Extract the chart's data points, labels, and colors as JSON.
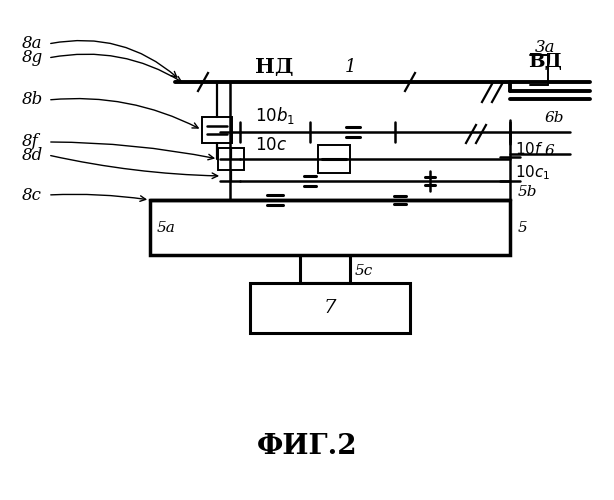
{
  "bg": "#ffffff",
  "lc": "#000000",
  "title": "ФИГ.2",
  "nd_label": "НД",
  "vd_label": "ВД",
  "ref1": "1",
  "ref3a": "3a",
  "ref5": "5",
  "ref5a": "5a",
  "ref5b": "5b",
  "ref5c": "5c",
  "ref6": "6",
  "ref6b": "6b",
  "ref7": "7",
  "ref8a": "8a",
  "ref8b": "8b",
  "ref8c": "8c",
  "ref8d": "8d",
  "ref8f": "8f",
  "ref8g": "8g",
  "ref10b1": "$10b_1$",
  "ref10c": "$10c$",
  "ref10c1": "$10c_1$",
  "ref10f": "$10f$"
}
